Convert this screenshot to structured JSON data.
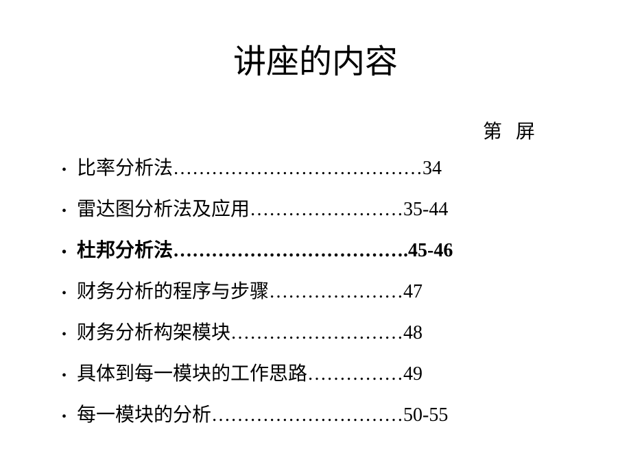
{
  "title": "讲座的内容",
  "page_header": "第屏",
  "background_color": "#ffffff",
  "text_color": "#000000",
  "title_fontsize": 48,
  "item_fontsize": 28,
  "items": [
    {
      "label": "比率分析法",
      "dots": "…………………………………",
      "page": "34",
      "bold": false
    },
    {
      "label": "雷达图分析法及应用",
      "dots": "……………………",
      "page": "35-44",
      "bold": false
    },
    {
      "label": "杜邦分析法",
      "dots": "……………………………….",
      "page": "45-46",
      "bold": true
    },
    {
      "label": "财务分析的程序与步骤",
      "dots": "…………………",
      "page": "47",
      "bold": false
    },
    {
      "label": "财务分析构架模块",
      "dots": "………………………",
      "page": "48",
      "bold": false
    },
    {
      "label": "具体到每一模块的工作思路",
      "dots": "……………",
      "page": "49",
      "bold": false
    },
    {
      "label": "每一模块的分析",
      "dots": "…………………………",
      "page": "50-55",
      "bold": false
    }
  ]
}
